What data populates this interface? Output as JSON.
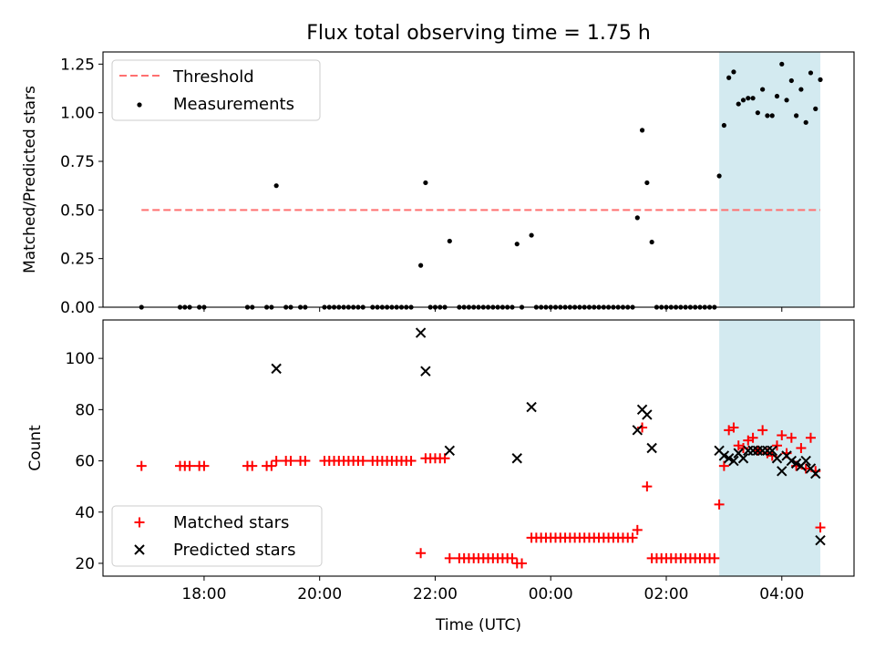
{
  "chart_data": [
    {
      "type": "scatter",
      "title": "Flux total observing time = 1.75 h",
      "xlabel": "",
      "ylabel": "Matched/Predicted stars",
      "xlim": [
        "16:15",
        "05:15"
      ],
      "ylim": [
        0,
        1.3125
      ],
      "yticks": [
        "0.00",
        "0.25",
        "0.50",
        "0.75",
        "1.00",
        "1.25"
      ],
      "legend_position": "upper-left",
      "shaded_region": {
        "x": [
          "02:55",
          "04:40"
        ],
        "color": "#d3eaf0"
      },
      "threshold": {
        "name": "Threshold",
        "y": 0.5,
        "x": [
          "16:55",
          "04:40"
        ],
        "color": "#ff7070",
        "style": "dashed"
      },
      "series": [
        {
          "name": "Measurements",
          "marker": "dot",
          "color": "#000000",
          "points": [
            [
              "16:55",
              0
            ],
            [
              "17:35",
              0
            ],
            [
              "17:40",
              0
            ],
            [
              "17:45",
              0
            ],
            [
              "17:55",
              0
            ],
            [
              "18:00",
              0
            ],
            [
              "18:45",
              0
            ],
            [
              "18:50",
              0
            ],
            [
              "19:05",
              0
            ],
            [
              "19:10",
              0
            ],
            [
              "19:15",
              0.625
            ],
            [
              "19:25",
              0
            ],
            [
              "19:30",
              0
            ],
            [
              "19:40",
              0
            ],
            [
              "19:45",
              0
            ],
            [
              "20:05",
              0
            ],
            [
              "20:10",
              0
            ],
            [
              "20:15",
              0
            ],
            [
              "20:20",
              0
            ],
            [
              "20:25",
              0
            ],
            [
              "20:30",
              0
            ],
            [
              "20:35",
              0
            ],
            [
              "20:40",
              0
            ],
            [
              "20:45",
              0
            ],
            [
              "20:55",
              0
            ],
            [
              "21:00",
              0
            ],
            [
              "21:05",
              0
            ],
            [
              "21:10",
              0
            ],
            [
              "21:15",
              0
            ],
            [
              "21:20",
              0
            ],
            [
              "21:25",
              0
            ],
            [
              "21:30",
              0
            ],
            [
              "21:35",
              0
            ],
            [
              "21:45",
              0.215
            ],
            [
              "21:50",
              0.64
            ],
            [
              "21:55",
              0
            ],
            [
              "22:00",
              0
            ],
            [
              "22:05",
              0
            ],
            [
              "22:10",
              0
            ],
            [
              "22:15",
              0.34
            ],
            [
              "22:25",
              0
            ],
            [
              "22:30",
              0
            ],
            [
              "22:35",
              0
            ],
            [
              "22:40",
              0
            ],
            [
              "22:45",
              0
            ],
            [
              "22:50",
              0
            ],
            [
              "22:55",
              0
            ],
            [
              "23:00",
              0
            ],
            [
              "23:05",
              0
            ],
            [
              "23:10",
              0
            ],
            [
              "23:15",
              0
            ],
            [
              "23:20",
              0
            ],
            [
              "23:25",
              0.325
            ],
            [
              "23:30",
              0
            ],
            [
              "23:40",
              0.37
            ],
            [
              "23:45",
              0
            ],
            [
              "23:50",
              0
            ],
            [
              "23:55",
              0
            ],
            [
              "00:00",
              0
            ],
            [
              "00:05",
              0
            ],
            [
              "00:10",
              0
            ],
            [
              "00:15",
              0
            ],
            [
              "00:20",
              0
            ],
            [
              "00:25",
              0
            ],
            [
              "00:30",
              0
            ],
            [
              "00:35",
              0
            ],
            [
              "00:40",
              0
            ],
            [
              "00:45",
              0
            ],
            [
              "00:50",
              0
            ],
            [
              "00:55",
              0
            ],
            [
              "01:00",
              0
            ],
            [
              "01:05",
              0
            ],
            [
              "01:10",
              0
            ],
            [
              "01:15",
              0
            ],
            [
              "01:20",
              0
            ],
            [
              "01:25",
              0
            ],
            [
              "01:30",
              0.46
            ],
            [
              "01:35",
              0.91
            ],
            [
              "01:40",
              0.64
            ],
            [
              "01:45",
              0.335
            ],
            [
              "01:50",
              0
            ],
            [
              "01:55",
              0
            ],
            [
              "02:00",
              0
            ],
            [
              "02:05",
              0
            ],
            [
              "02:10",
              0
            ],
            [
              "02:15",
              0
            ],
            [
              "02:20",
              0
            ],
            [
              "02:25",
              0
            ],
            [
              "02:30",
              0
            ],
            [
              "02:35",
              0
            ],
            [
              "02:40",
              0
            ],
            [
              "02:45",
              0
            ],
            [
              "02:50",
              0
            ],
            [
              "02:55",
              0.675
            ],
            [
              "03:00",
              0.935
            ],
            [
              "03:05",
              1.18
            ],
            [
              "03:10",
              1.21
            ],
            [
              "03:15",
              1.045
            ],
            [
              "03:20",
              1.065
            ],
            [
              "03:25",
              1.075
            ],
            [
              "03:30",
              1.075
            ],
            [
              "03:35",
              1.0
            ],
            [
              "03:40",
              1.12
            ],
            [
              "03:45",
              0.985
            ],
            [
              "03:50",
              0.985
            ],
            [
              "03:55",
              1.085
            ],
            [
              "04:00",
              1.25
            ],
            [
              "04:05",
              1.065
            ],
            [
              "04:10",
              1.165
            ],
            [
              "04:15",
              0.985
            ],
            [
              "04:20",
              1.12
            ],
            [
              "04:25",
              0.95
            ],
            [
              "04:30",
              1.205
            ],
            [
              "04:35",
              1.02
            ],
            [
              "04:40",
              1.17
            ]
          ]
        }
      ]
    },
    {
      "type": "scatter",
      "title": "",
      "xlabel": "Time (UTC)",
      "ylabel": "Count",
      "xlim": [
        "16:15",
        "05:15"
      ],
      "ylim": [
        15,
        115
      ],
      "xticks": [
        "18:00",
        "20:00",
        "22:00",
        "00:00",
        "02:00",
        "04:00"
      ],
      "yticks": [
        "20",
        "40",
        "60",
        "80",
        "100"
      ],
      "legend_position": "lower-left",
      "shaded_region": {
        "x": [
          "02:55",
          "04:40"
        ],
        "color": "#d3eaf0"
      },
      "series": [
        {
          "name": "Matched stars",
          "marker": "plus",
          "color": "#ff0000",
          "points": [
            [
              "16:55",
              58
            ],
            [
              "17:35",
              58
            ],
            [
              "17:40",
              58
            ],
            [
              "17:45",
              58
            ],
            [
              "17:55",
              58
            ],
            [
              "18:00",
              58
            ],
            [
              "18:45",
              58
            ],
            [
              "18:50",
              58
            ],
            [
              "19:05",
              58
            ],
            [
              "19:10",
              58
            ],
            [
              "19:15",
              60
            ],
            [
              "19:25",
              60
            ],
            [
              "19:30",
              60
            ],
            [
              "19:40",
              60
            ],
            [
              "19:45",
              60
            ],
            [
              "20:05",
              60
            ],
            [
              "20:10",
              60
            ],
            [
              "20:15",
              60
            ],
            [
              "20:20",
              60
            ],
            [
              "20:25",
              60
            ],
            [
              "20:30",
              60
            ],
            [
              "20:35",
              60
            ],
            [
              "20:40",
              60
            ],
            [
              "20:45",
              60
            ],
            [
              "20:55",
              60
            ],
            [
              "21:00",
              60
            ],
            [
              "21:05",
              60
            ],
            [
              "21:10",
              60
            ],
            [
              "21:15",
              60
            ],
            [
              "21:20",
              60
            ],
            [
              "21:25",
              60
            ],
            [
              "21:30",
              60
            ],
            [
              "21:35",
              60
            ],
            [
              "21:45",
              24
            ],
            [
              "21:50",
              61
            ],
            [
              "21:55",
              61
            ],
            [
              "22:00",
              61
            ],
            [
              "22:05",
              61
            ],
            [
              "22:10",
              61
            ],
            [
              "22:15",
              22
            ],
            [
              "22:25",
              22
            ],
            [
              "22:30",
              22
            ],
            [
              "22:35",
              22
            ],
            [
              "22:40",
              22
            ],
            [
              "22:45",
              22
            ],
            [
              "22:50",
              22
            ],
            [
              "22:55",
              22
            ],
            [
              "23:00",
              22
            ],
            [
              "23:05",
              22
            ],
            [
              "23:10",
              22
            ],
            [
              "23:15",
              22
            ],
            [
              "23:20",
              22
            ],
            [
              "23:25",
              20
            ],
            [
              "23:30",
              20
            ],
            [
              "23:40",
              30
            ],
            [
              "23:45",
              30
            ],
            [
              "23:50",
              30
            ],
            [
              "23:55",
              30
            ],
            [
              "00:00",
              30
            ],
            [
              "00:05",
              30
            ],
            [
              "00:10",
              30
            ],
            [
              "00:15",
              30
            ],
            [
              "00:20",
              30
            ],
            [
              "00:25",
              30
            ],
            [
              "00:30",
              30
            ],
            [
              "00:35",
              30
            ],
            [
              "00:40",
              30
            ],
            [
              "00:45",
              30
            ],
            [
              "00:50",
              30
            ],
            [
              "00:55",
              30
            ],
            [
              "01:00",
              30
            ],
            [
              "01:05",
              30
            ],
            [
              "01:10",
              30
            ],
            [
              "01:15",
              30
            ],
            [
              "01:20",
              30
            ],
            [
              "01:25",
              30
            ],
            [
              "01:30",
              33
            ],
            [
              "01:35",
              73
            ],
            [
              "01:40",
              50
            ],
            [
              "01:45",
              22
            ],
            [
              "01:50",
              22
            ],
            [
              "01:55",
              22
            ],
            [
              "02:00",
              22
            ],
            [
              "02:05",
              22
            ],
            [
              "02:10",
              22
            ],
            [
              "02:15",
              22
            ],
            [
              "02:20",
              22
            ],
            [
              "02:25",
              22
            ],
            [
              "02:30",
              22
            ],
            [
              "02:35",
              22
            ],
            [
              "02:40",
              22
            ],
            [
              "02:45",
              22
            ],
            [
              "02:50",
              22
            ],
            [
              "02:55",
              43
            ],
            [
              "03:00",
              58
            ],
            [
              "03:05",
              72
            ],
            [
              "03:10",
              73
            ],
            [
              "03:15",
              66
            ],
            [
              "03:20",
              65
            ],
            [
              "03:25",
              68
            ],
            [
              "03:30",
              69
            ],
            [
              "03:35",
              64
            ],
            [
              "03:40",
              72
            ],
            [
              "03:45",
              63
            ],
            [
              "03:50",
              62
            ],
            [
              "03:55",
              66
            ],
            [
              "04:00",
              70
            ],
            [
              "04:05",
              63
            ],
            [
              "04:10",
              69
            ],
            [
              "04:15",
              58
            ],
            [
              "04:20",
              65
            ],
            [
              "04:25",
              57
            ],
            [
              "04:30",
              69
            ],
            [
              "04:35",
              56
            ],
            [
              "04:40",
              34
            ]
          ]
        },
        {
          "name": "Predicted stars",
          "marker": "x",
          "color": "#000000",
          "points": [
            [
              "19:15",
              96
            ],
            [
              "21:45",
              110
            ],
            [
              "21:50",
              95
            ],
            [
              "22:15",
              64
            ],
            [
              "23:25",
              61
            ],
            [
              "23:40",
              81
            ],
            [
              "01:30",
              72
            ],
            [
              "01:35",
              80
            ],
            [
              "01:40",
              78
            ],
            [
              "01:45",
              65
            ],
            [
              "02:55",
              64
            ],
            [
              "03:00",
              62
            ],
            [
              "03:05",
              61
            ],
            [
              "03:10",
              60
            ],
            [
              "03:15",
              63
            ],
            [
              "03:20",
              61
            ],
            [
              "03:25",
              64
            ],
            [
              "03:30",
              64
            ],
            [
              "03:35",
              64
            ],
            [
              "03:40",
              64
            ],
            [
              "03:45",
              64
            ],
            [
              "03:50",
              64
            ],
            [
              "03:55",
              61
            ],
            [
              "04:00",
              56
            ],
            [
              "04:05",
              62
            ],
            [
              "04:10",
              60
            ],
            [
              "04:15",
              59
            ],
            [
              "04:20",
              58
            ],
            [
              "04:25",
              60
            ],
            [
              "04:30",
              57
            ],
            [
              "04:35",
              55
            ],
            [
              "04:40",
              29
            ]
          ]
        }
      ]
    }
  ]
}
